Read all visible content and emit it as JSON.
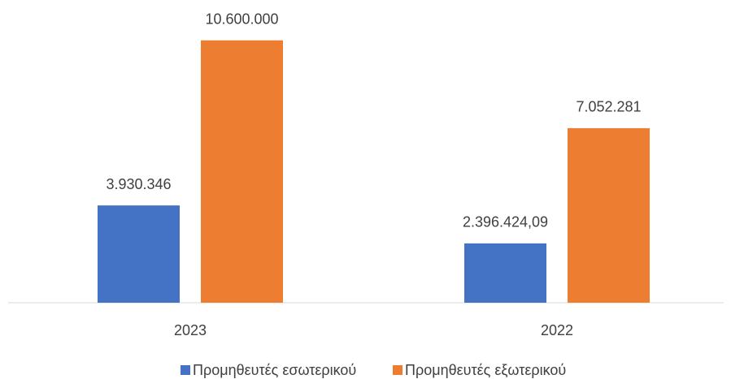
{
  "chart_data": {
    "type": "bar",
    "categories": [
      "2023",
      "2022"
    ],
    "series": [
      {
        "name": "Προμηθευτές εσωτερικού",
        "color": "#4472c4",
        "values": [
          3930346,
          2396424.09
        ],
        "value_labels": [
          "3.930.346",
          "2.396.424,09"
        ]
      },
      {
        "name": "Προμηθευτές εξωτερικού",
        "color": "#ed7d31",
        "values": [
          10600000,
          7052281
        ],
        "value_labels": [
          "10.600.000",
          "7.052.281"
        ]
      }
    ],
    "ylim": [
      0,
      12000000
    ]
  }
}
